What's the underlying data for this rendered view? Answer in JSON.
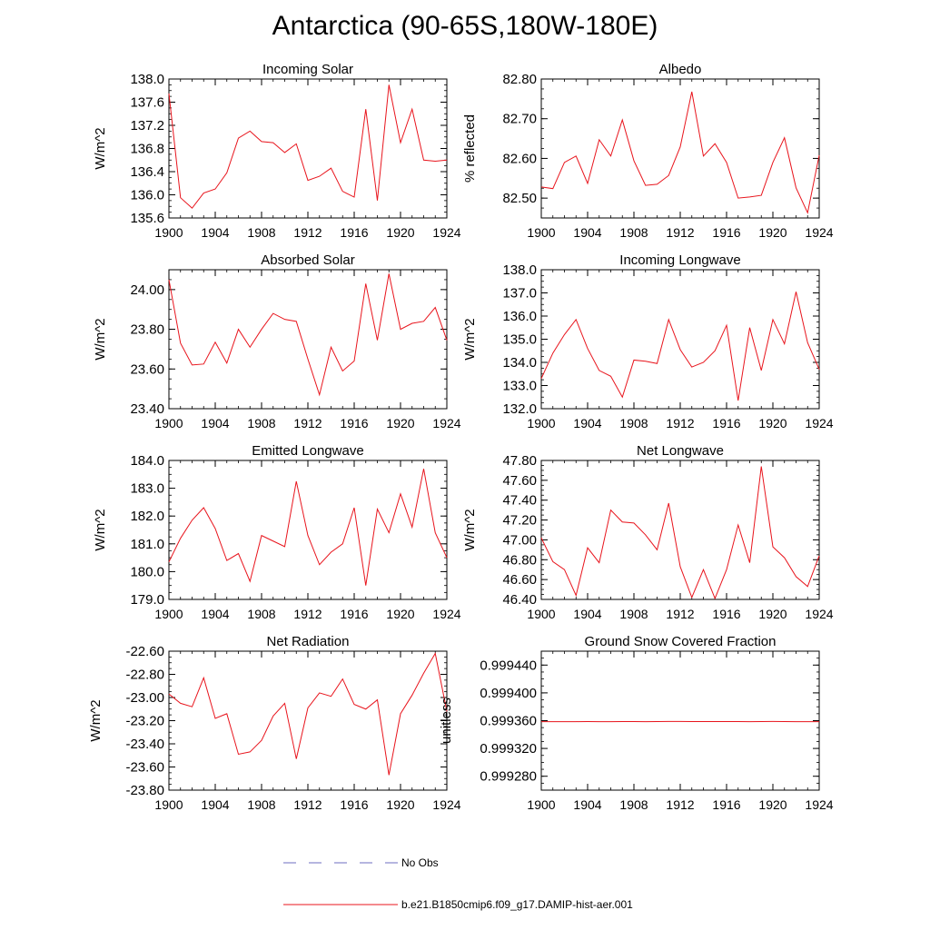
{
  "figure_title": "Antarctica (90-65S,180W-180E)",
  "legend": {
    "items": [
      {
        "label": "No Obs",
        "style": "dashed",
        "color": "#6c6cc0"
      },
      {
        "label": "b.e21.B1850cmip6.f09_g17.DAMIP-hist-aer.001",
        "style": "solid",
        "color": "#e8141c"
      }
    ]
  },
  "chart_data": [
    {
      "type": "line",
      "title": "Incoming Solar",
      "ylabel": "W/m^2",
      "xlim": [
        1900,
        1924
      ],
      "ylim": [
        135.6,
        138.0
      ],
      "decimals": 1,
      "yticks": [
        135.6,
        136.0,
        136.4,
        136.8,
        137.2,
        137.6,
        138.0
      ],
      "xticks": [
        1900,
        1904,
        1908,
        1912,
        1916,
        1920,
        1924
      ],
      "series": [
        {
          "color": "#e8141c",
          "x": [
            1900,
            1901,
            1902,
            1903,
            1904,
            1905,
            1906,
            1907,
            1908,
            1909,
            1910,
            1911,
            1912,
            1913,
            1914,
            1915,
            1916,
            1917,
            1918,
            1919,
            1920,
            1921,
            1922,
            1923,
            1924
          ],
          "values": [
            137.75,
            135.95,
            135.77,
            136.03,
            136.1,
            136.38,
            136.98,
            137.1,
            136.92,
            136.9,
            136.73,
            136.88,
            136.25,
            136.32,
            136.46,
            136.06,
            135.96,
            137.48,
            135.9,
            137.9,
            136.9,
            137.48,
            136.6,
            136.58,
            136.6
          ]
        }
      ]
    },
    {
      "type": "line",
      "title": "Albedo",
      "ylabel": "% reflected",
      "xlim": [
        1900,
        1924
      ],
      "ylim": [
        82.45,
        82.8
      ],
      "decimals": 2,
      "yticks": [
        82.5,
        82.6,
        82.7,
        82.8
      ],
      "xticks": [
        1900,
        1904,
        1908,
        1912,
        1916,
        1920,
        1924
      ],
      "series": [
        {
          "color": "#e8141c",
          "x": [
            1900,
            1901,
            1902,
            1903,
            1904,
            1905,
            1906,
            1907,
            1908,
            1909,
            1910,
            1911,
            1912,
            1913,
            1914,
            1915,
            1916,
            1917,
            1918,
            1919,
            1920,
            1921,
            1922,
            1923,
            1924
          ],
          "values": [
            82.528,
            82.524,
            82.59,
            82.606,
            82.537,
            82.647,
            82.606,
            82.697,
            82.594,
            82.532,
            82.535,
            82.557,
            82.629,
            82.768,
            82.606,
            82.637,
            82.59,
            82.5,
            82.503,
            82.507,
            82.59,
            82.652,
            82.526,
            82.463,
            82.608
          ]
        }
      ]
    },
    {
      "type": "line",
      "title": "Absorbed Solar",
      "ylabel": "W/m^2",
      "xlim": [
        1900,
        1924
      ],
      "ylim": [
        23.4,
        24.1
      ],
      "decimals": 2,
      "yticks": [
        23.4,
        23.6,
        23.8,
        24.0
      ],
      "xticks": [
        1900,
        1904,
        1908,
        1912,
        1916,
        1920,
        1924
      ],
      "series": [
        {
          "color": "#e8141c",
          "x": [
            1900,
            1901,
            1902,
            1903,
            1904,
            1905,
            1906,
            1907,
            1908,
            1909,
            1910,
            1911,
            1912,
            1913,
            1914,
            1915,
            1916,
            1917,
            1918,
            1919,
            1920,
            1921,
            1922,
            1923,
            1924
          ],
          "values": [
            24.05,
            23.73,
            23.62,
            23.625,
            23.735,
            23.63,
            23.8,
            23.71,
            23.8,
            23.88,
            23.85,
            23.84,
            23.65,
            23.47,
            23.71,
            23.59,
            23.64,
            24.03,
            23.745,
            24.08,
            23.8,
            23.83,
            23.84,
            23.91,
            23.745
          ]
        }
      ]
    },
    {
      "type": "line",
      "title": "Incoming Longwave",
      "ylabel": "W/m^2",
      "xlim": [
        1900,
        1924
      ],
      "ylim": [
        132.0,
        138.0
      ],
      "decimals": 1,
      "yticks": [
        132.0,
        133.0,
        134.0,
        135.0,
        136.0,
        137.0,
        138.0
      ],
      "xticks": [
        1900,
        1904,
        1908,
        1912,
        1916,
        1920,
        1924
      ],
      "series": [
        {
          "color": "#e8141c",
          "x": [
            1900,
            1901,
            1902,
            1903,
            1904,
            1905,
            1906,
            1907,
            1908,
            1909,
            1910,
            1911,
            1912,
            1913,
            1914,
            1915,
            1916,
            1917,
            1918,
            1919,
            1920,
            1921,
            1922,
            1923,
            1924
          ],
          "values": [
            133.3,
            134.4,
            135.2,
            135.85,
            134.6,
            133.65,
            133.4,
            132.5,
            134.1,
            134.05,
            133.95,
            135.85,
            134.55,
            133.8,
            134.0,
            134.5,
            135.6,
            132.35,
            135.5,
            133.65,
            135.85,
            134.8,
            137.05,
            134.85,
            133.7
          ]
        }
      ]
    },
    {
      "type": "line",
      "title": "Emitted Longwave",
      "ylabel": "W/m^2",
      "xlim": [
        1900,
        1924
      ],
      "ylim": [
        179.0,
        184.0
      ],
      "decimals": 1,
      "yticks": [
        179.0,
        180.0,
        181.0,
        182.0,
        183.0,
        184.0
      ],
      "xticks": [
        1900,
        1904,
        1908,
        1912,
        1916,
        1920,
        1924
      ],
      "series": [
        {
          "color": "#e8141c",
          "x": [
            1900,
            1901,
            1902,
            1903,
            1904,
            1905,
            1906,
            1907,
            1908,
            1909,
            1910,
            1911,
            1912,
            1913,
            1914,
            1915,
            1916,
            1917,
            1918,
            1919,
            1920,
            1921,
            1922,
            1923,
            1924
          ],
          "values": [
            180.35,
            181.2,
            181.85,
            182.3,
            181.55,
            180.4,
            180.65,
            179.65,
            181.3,
            181.1,
            180.9,
            183.25,
            181.3,
            180.25,
            180.7,
            181.0,
            182.3,
            179.5,
            182.25,
            181.4,
            182.8,
            181.6,
            183.7,
            181.4,
            180.5
          ]
        }
      ]
    },
    {
      "type": "line",
      "title": "Net Longwave",
      "ylabel": "W/m^2",
      "xlim": [
        1900,
        1924
      ],
      "ylim": [
        46.4,
        47.8
      ],
      "decimals": 2,
      "yticks": [
        46.4,
        46.6,
        46.8,
        47.0,
        47.2,
        47.4,
        47.6,
        47.8
      ],
      "xticks": [
        1900,
        1904,
        1908,
        1912,
        1916,
        1920,
        1924
      ],
      "series": [
        {
          "color": "#e8141c",
          "x": [
            1900,
            1901,
            1902,
            1903,
            1904,
            1905,
            1906,
            1907,
            1908,
            1909,
            1910,
            1911,
            1912,
            1913,
            1914,
            1915,
            1916,
            1917,
            1918,
            1919,
            1920,
            1921,
            1922,
            1923,
            1924
          ],
          "values": [
            47.02,
            46.78,
            46.7,
            46.44,
            46.92,
            46.77,
            47.3,
            47.18,
            47.17,
            47.05,
            46.9,
            47.37,
            46.73,
            46.42,
            46.7,
            46.41,
            46.7,
            47.15,
            46.77,
            47.74,
            46.93,
            46.82,
            46.63,
            46.53,
            46.84
          ]
        }
      ]
    },
    {
      "type": "line",
      "title": "Net Radiation",
      "ylabel": "W/m^2",
      "xlim": [
        1900,
        1924
      ],
      "ylim": [
        -23.8,
        -22.6
      ],
      "decimals": 2,
      "yticks": [
        -23.8,
        -23.6,
        -23.4,
        -23.2,
        -23.0,
        -22.8,
        -22.6
      ],
      "xticks": [
        1900,
        1904,
        1908,
        1912,
        1916,
        1920,
        1924
      ],
      "series": [
        {
          "color": "#e8141c",
          "x": [
            1900,
            1901,
            1902,
            1903,
            1904,
            1905,
            1906,
            1907,
            1908,
            1909,
            1910,
            1911,
            1912,
            1913,
            1914,
            1915,
            1916,
            1917,
            1918,
            1919,
            1920,
            1921,
            1922,
            1923,
            1924
          ],
          "values": [
            -22.97,
            -23.05,
            -23.08,
            -22.83,
            -23.18,
            -23.14,
            -23.49,
            -23.47,
            -23.37,
            -23.16,
            -23.05,
            -23.53,
            -23.09,
            -22.96,
            -22.99,
            -22.84,
            -23.06,
            -23.1,
            -23.02,
            -23.67,
            -23.14,
            -22.98,
            -22.79,
            -22.62,
            -23.12
          ]
        }
      ]
    },
    {
      "type": "line",
      "title": "Ground Snow Covered Fraction",
      "ylabel": "unitless",
      "xlim": [
        1900,
        1924
      ],
      "ylim": [
        0.99926,
        0.99946
      ],
      "decimals": 6,
      "yticks": [
        0.99928,
        0.99932,
        0.99936,
        0.9994,
        0.99944
      ],
      "xticks": [
        1900,
        1904,
        1908,
        1912,
        1916,
        1920,
        1924
      ],
      "series": [
        {
          "color": "#e8141c",
          "x": [
            1900,
            1901,
            1902,
            1903,
            1904,
            1905,
            1906,
            1907,
            1908,
            1909,
            1910,
            1911,
            1912,
            1913,
            1914,
            1915,
            1916,
            1917,
            1918,
            1919,
            1920,
            1921,
            1922,
            1923,
            1924
          ],
          "values": [
            0.9993585,
            0.9993585,
            0.9993586,
            0.9993586,
            0.9993587,
            0.9993586,
            0.9993586,
            0.9993587,
            0.9993587,
            0.9993586,
            0.9993587,
            0.9993588,
            0.9993588,
            0.9993587,
            0.9993587,
            0.9993587,
            0.9993587,
            0.9993587,
            0.9993586,
            0.9993587,
            0.9993588,
            0.9993587,
            0.9993586,
            0.9993586,
            0.9993586
          ]
        }
      ]
    }
  ]
}
